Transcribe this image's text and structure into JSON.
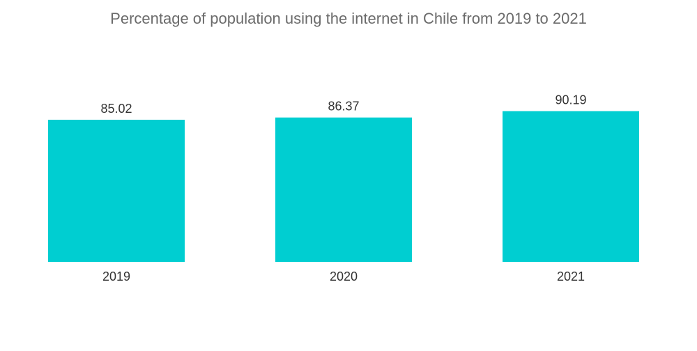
{
  "chart_data": {
    "type": "bar",
    "title": "Percentage of population using the internet in Chile from 2019 to 2021",
    "xlabel": "",
    "ylabel": "",
    "categories": [
      "2019",
      "2020",
      "2021"
    ],
    "values": [
      85.02,
      86.37,
      90.19
    ],
    "value_labels": [
      "85.02",
      "86.37",
      "90.19"
    ],
    "ylim": [
      0,
      100
    ],
    "grid": false,
    "legend": "none",
    "bar_color": "#00ced1"
  }
}
